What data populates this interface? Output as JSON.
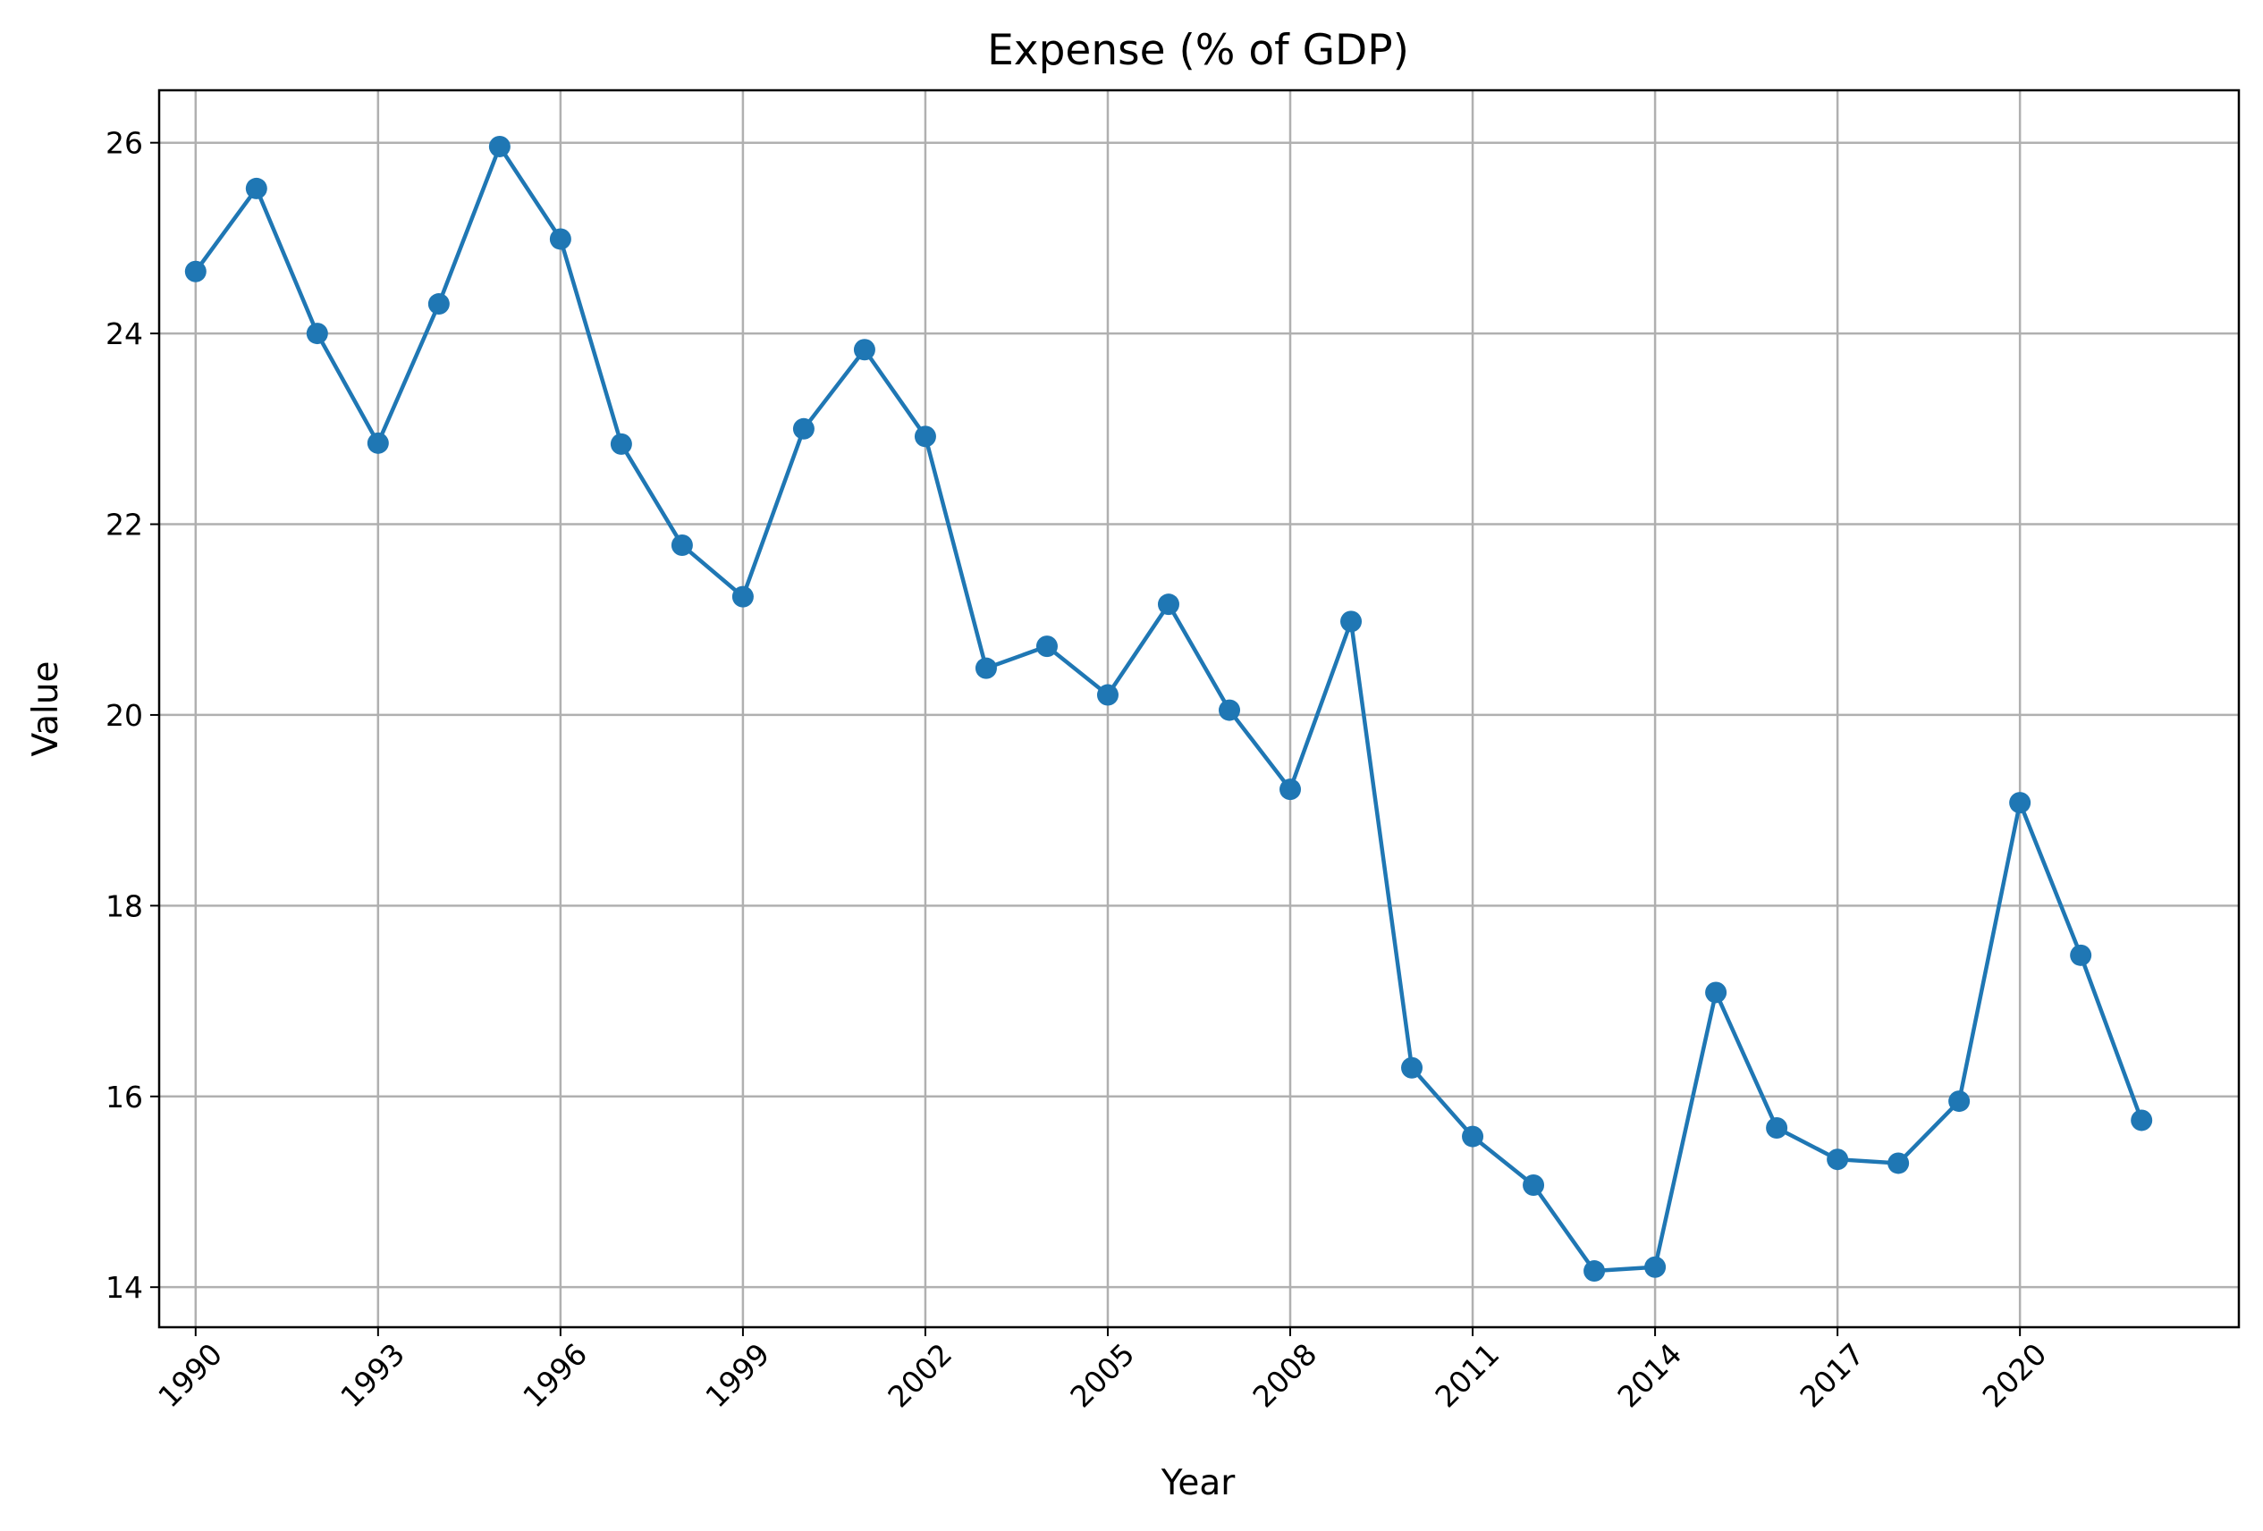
{
  "chart_data": {
    "type": "line",
    "title": "Expense (% of GDP)",
    "xlabel": "Year",
    "ylabel": "Value",
    "x": [
      1990,
      1991,
      1992,
      1993,
      1994,
      1995,
      1996,
      1997,
      1998,
      1999,
      2000,
      2001,
      2002,
      2003,
      2004,
      2005,
      2006,
      2007,
      2008,
      2009,
      2010,
      2011,
      2012,
      2013,
      2014,
      2015,
      2016,
      2017,
      2018,
      2019,
      2020,
      2021,
      2022
    ],
    "series": [
      {
        "values": [
          24.65,
          25.52,
          24.0,
          22.85,
          24.31,
          25.96,
          24.99,
          22.84,
          21.78,
          21.24,
          23.0,
          23.83,
          22.92,
          20.49,
          20.72,
          20.21,
          21.16,
          20.05,
          19.22,
          20.98,
          16.3,
          15.58,
          15.07,
          14.17,
          14.21,
          17.09,
          15.67,
          15.34,
          15.3,
          15.95,
          19.08,
          17.48,
          15.75
        ],
        "color": "#1f77b4"
      }
    ],
    "xticks": [
      "1990",
      "1993",
      "1996",
      "1999",
      "2002",
      "2005",
      "2008",
      "2011",
      "2014",
      "2017",
      "2020"
    ],
    "yticks": [
      "14",
      "16",
      "18",
      "20",
      "22",
      "24",
      "26"
    ],
    "xlim": [
      1989.4,
      2023.6
    ],
    "ylim": [
      13.58,
      26.55
    ],
    "grid": true,
    "legend": "none"
  }
}
